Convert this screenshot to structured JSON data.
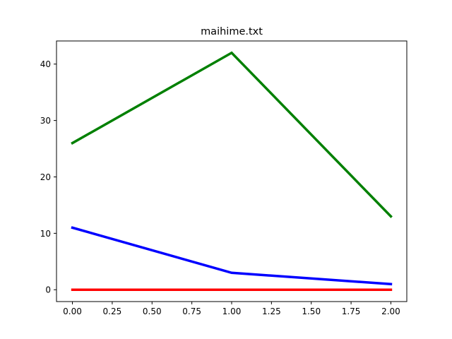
{
  "chart_data": {
    "type": "line",
    "title": "maihime.txt",
    "xlabel": "",
    "ylabel": "",
    "xlim": [
      -0.1,
      2.1
    ],
    "ylim": [
      -2.1,
      44.1
    ],
    "x_ticks": [
      0.0,
      0.25,
      0.5,
      0.75,
      1.0,
      1.25,
      1.5,
      1.75,
      2.0
    ],
    "x_tick_labels": [
      "0.00",
      "0.25",
      "0.50",
      "0.75",
      "1.00",
      "1.25",
      "1.50",
      "1.75",
      "2.00"
    ],
    "y_ticks": [
      0,
      10,
      20,
      30,
      40
    ],
    "y_tick_labels": [
      "0",
      "10",
      "20",
      "30",
      "40"
    ],
    "grid": false,
    "x": [
      0,
      1,
      2
    ],
    "series": [
      {
        "color": "#ff0000",
        "values": [
          0,
          0,
          0
        ]
      },
      {
        "color": "#0000ff",
        "values": [
          11,
          3,
          1
        ]
      },
      {
        "color": "#008000",
        "values": [
          26,
          42,
          13
        ]
      }
    ]
  }
}
